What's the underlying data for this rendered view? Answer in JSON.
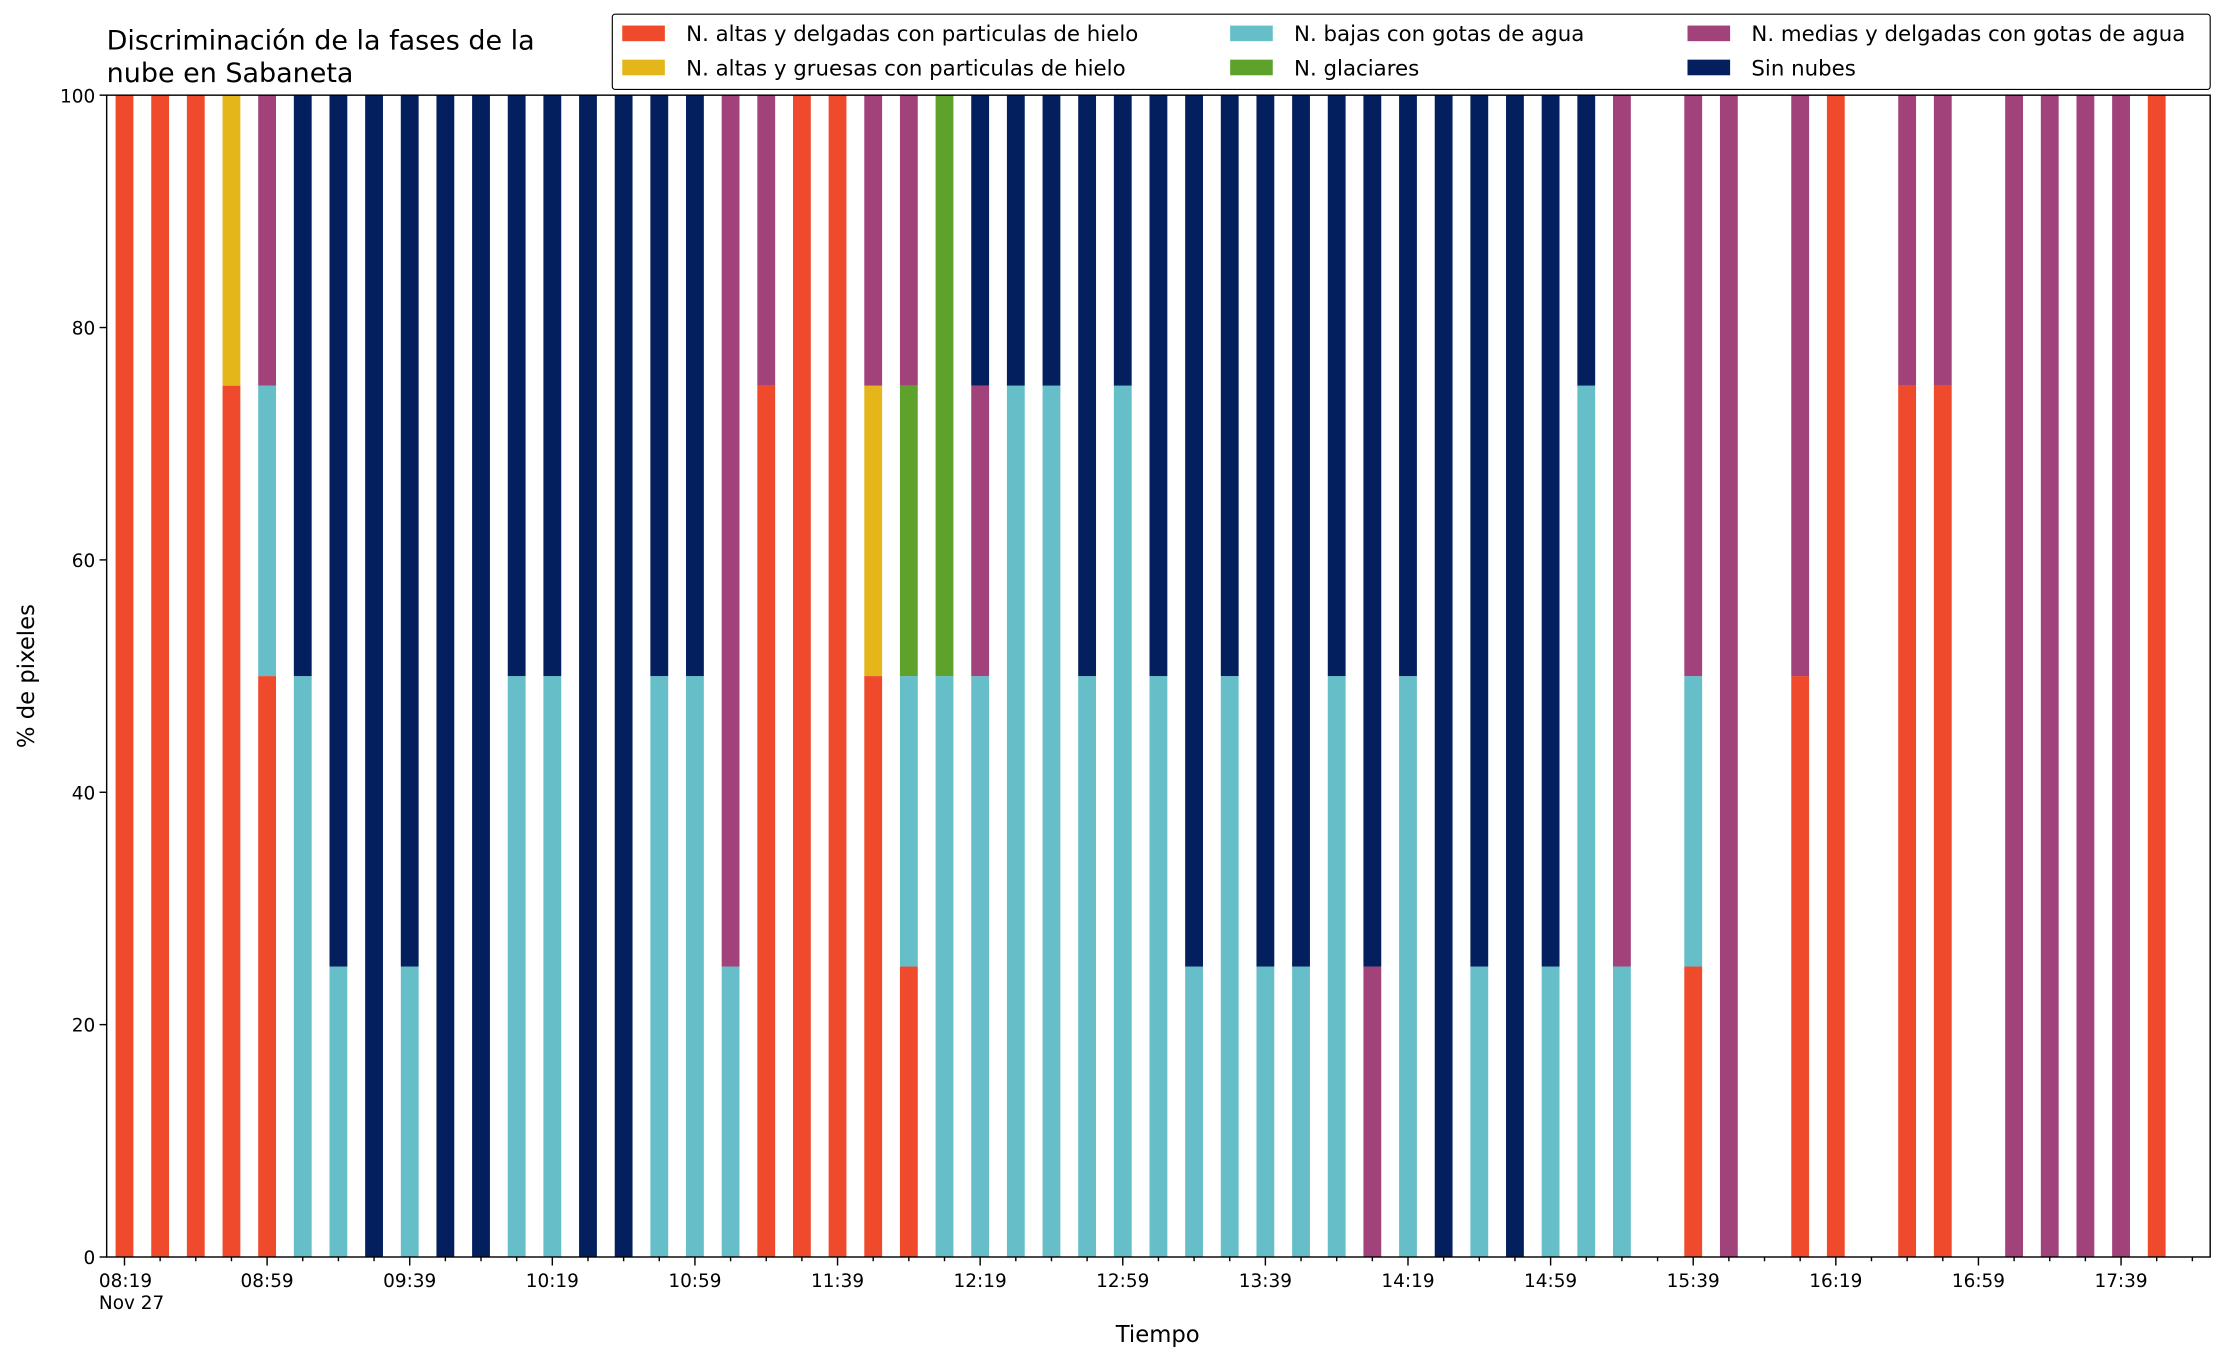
{
  "chart_data": {
    "type": "stacked-bar",
    "title": "Discriminación de la fases de la\nnube en Sabaneta",
    "xlabel": "Tiempo",
    "ylabel": "% de pixeles",
    "x": [
      "08:19",
      "08:29",
      "08:39",
      "08:49",
      "08:59",
      "09:09",
      "09:19",
      "09:29",
      "09:39",
      "09:49",
      "09:59",
      "10:09",
      "10:19",
      "10:29",
      "10:39",
      "10:49",
      "10:59",
      "11:09",
      "11:19",
      "11:29",
      "11:39",
      "11:49",
      "11:59",
      "12:09",
      "12:19",
      "12:29",
      "12:39",
      "12:49",
      "12:59",
      "13:09",
      "13:19",
      "13:29",
      "13:39",
      "13:49",
      "13:59",
      "14:09",
      "14:19",
      "14:29",
      "14:39",
      "14:49",
      "14:59",
      "15:09",
      "15:19",
      "15:39",
      "15:49",
      "16:09",
      "16:19",
      "16:39",
      "16:49",
      "17:09",
      "17:19",
      "17:29",
      "17:39",
      "17:49"
    ],
    "xlim": [
      "08:14",
      "18:04"
    ],
    "xticks": [
      {
        "value": "08:19",
        "label": "08:19\nNov 27"
      },
      "08:59",
      "09:39",
      "10:19",
      "10:59",
      "11:39",
      "12:19",
      "12:59",
      "13:39",
      "14:19",
      "14:59",
      "15:39",
      "16:19",
      "16:59",
      "17:39"
    ],
    "xminorticks": [
      "08:29",
      "08:39",
      "08:49",
      "09:09",
      "09:19",
      "09:29",
      "09:49",
      "09:59",
      "10:09",
      "10:29",
      "10:39",
      "10:49",
      "11:09",
      "11:19",
      "11:29",
      "11:49",
      "11:59",
      "12:09",
      "12:29",
      "12:39",
      "12:49",
      "13:09",
      "13:19",
      "13:29",
      "13:49",
      "13:59",
      "14:09",
      "14:29",
      "14:39",
      "14:49",
      "15:09",
      "15:19",
      "15:29",
      "15:49",
      "15:59",
      "16:09",
      "16:29",
      "16:39",
      "16:49",
      "17:09",
      "17:19",
      "17:29",
      "17:49",
      "17:59"
    ],
    "ylim": [
      0,
      100
    ],
    "yticks": [
      0,
      20,
      40,
      60,
      80,
      100
    ],
    "legend": "top-right",
    "series": [
      {
        "name": "N. altas y delgadas con particulas de hielo",
        "color": "#ef4a2b",
        "values": [
          100,
          100,
          100,
          75,
          50,
          0,
          0,
          0,
          0,
          0,
          0,
          0,
          0,
          0,
          0,
          0,
          0,
          0,
          75,
          100,
          100,
          50,
          25,
          0,
          0,
          0,
          0,
          0,
          0,
          0,
          0,
          0,
          0,
          0,
          0,
          0,
          0,
          0,
          0,
          0,
          0,
          0,
          0,
          25,
          0,
          50,
          100,
          75,
          75,
          0,
          0,
          0,
          0,
          100
        ]
      },
      {
        "name": "N. altas y gruesas con particulas de hielo",
        "color": "#e4b61a",
        "values": [
          0,
          0,
          0,
          25,
          0,
          0,
          0,
          0,
          0,
          0,
          0,
          0,
          0,
          0,
          0,
          0,
          0,
          0,
          0,
          0,
          0,
          25,
          0,
          0,
          0,
          0,
          0,
          0,
          0,
          0,
          0,
          0,
          0,
          0,
          0,
          0,
          0,
          0,
          0,
          0,
          0,
          0,
          0,
          0,
          0,
          0,
          0,
          0,
          0,
          0,
          0,
          0,
          0,
          0
        ]
      },
      {
        "name": "N. bajas con gotas de agua",
        "color": "#66bec9",
        "values": [
          0,
          0,
          0,
          0,
          25,
          50,
          25,
          0,
          25,
          0,
          0,
          50,
          50,
          0,
          0,
          50,
          50,
          25,
          0,
          0,
          0,
          0,
          25,
          50,
          50,
          75,
          75,
          50,
          75,
          50,
          25,
          50,
          25,
          25,
          50,
          0,
          50,
          0,
          25,
          0,
          25,
          75,
          25,
          25,
          0,
          0,
          0,
          0,
          0,
          0,
          0,
          0,
          0,
          0
        ]
      },
      {
        "name": "N. glaciares",
        "color": "#5ea22b",
        "values": [
          0,
          0,
          0,
          0,
          0,
          0,
          0,
          0,
          0,
          0,
          0,
          0,
          0,
          0,
          0,
          0,
          0,
          0,
          0,
          0,
          0,
          0,
          25,
          50,
          0,
          0,
          0,
          0,
          0,
          0,
          0,
          0,
          0,
          0,
          0,
          0,
          0,
          0,
          0,
          0,
          0,
          0,
          0,
          0,
          0,
          0,
          0,
          0,
          0,
          0,
          0,
          0,
          0,
          0
        ]
      },
      {
        "name": "N. medias y delgadas con gotas de agua",
        "color": "#a1427a",
        "values": [
          0,
          0,
          0,
          0,
          25,
          0,
          0,
          0,
          0,
          0,
          0,
          0,
          0,
          0,
          0,
          0,
          0,
          75,
          25,
          0,
          0,
          25,
          25,
          0,
          25,
          0,
          0,
          0,
          0,
          0,
          0,
          0,
          0,
          0,
          0,
          25,
          0,
          0,
          0,
          0,
          0,
          0,
          75,
          50,
          100,
          50,
          0,
          25,
          25,
          100,
          100,
          100,
          100,
          0
        ]
      },
      {
        "name": "Sin nubes",
        "color": "#041f5e",
        "values": [
          0,
          0,
          0,
          0,
          0,
          50,
          75,
          100,
          75,
          100,
          100,
          50,
          50,
          100,
          100,
          50,
          50,
          0,
          0,
          0,
          0,
          0,
          0,
          0,
          25,
          25,
          25,
          50,
          25,
          50,
          75,
          50,
          75,
          75,
          50,
          75,
          50,
          100,
          75,
          100,
          75,
          25,
          0,
          0,
          0,
          0,
          0,
          0,
          0,
          0,
          0,
          0,
          0,
          0
        ]
      }
    ]
  }
}
